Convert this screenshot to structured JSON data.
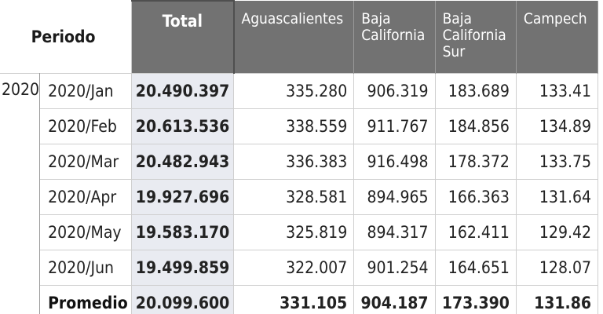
{
  "header": {
    "periodo": "Periodo",
    "total": "Total",
    "states": [
      [
        "Aguascalientes"
      ],
      [
        "Baja",
        "California"
      ],
      [
        "Baja",
        "California",
        "Sur"
      ],
      [
        "Campech"
      ]
    ]
  },
  "year": "2020",
  "rows": [
    {
      "periodo": "2020/Jan",
      "total": "20.490.397",
      "values": [
        "335.280",
        "906.319",
        "183.689",
        "133.41"
      ]
    },
    {
      "periodo": "2020/Feb",
      "total": "20.613.536",
      "values": [
        "338.559",
        "911.767",
        "184.856",
        "134.89"
      ]
    },
    {
      "periodo": "2020/Mar",
      "total": "20.482.943",
      "values": [
        "336.383",
        "916.498",
        "178.372",
        "133.75"
      ]
    },
    {
      "periodo": "2020/Apr",
      "total": "19.927.696",
      "values": [
        "328.581",
        "894.965",
        "166.363",
        "131.64"
      ]
    },
    {
      "periodo": "2020/May",
      "total": "19.583.170",
      "values": [
        "325.819",
        "894.317",
        "162.411",
        "129.42"
      ]
    },
    {
      "periodo": "2020/Jun",
      "total": "19.499.859",
      "values": [
        "322.007",
        "901.254",
        "164.651",
        "128.07"
      ]
    }
  ],
  "average": {
    "periodo": "Promedio",
    "total": "20.099.600",
    "values": [
      "331.105",
      "904.187",
      "173.390",
      "131.86"
    ]
  }
}
